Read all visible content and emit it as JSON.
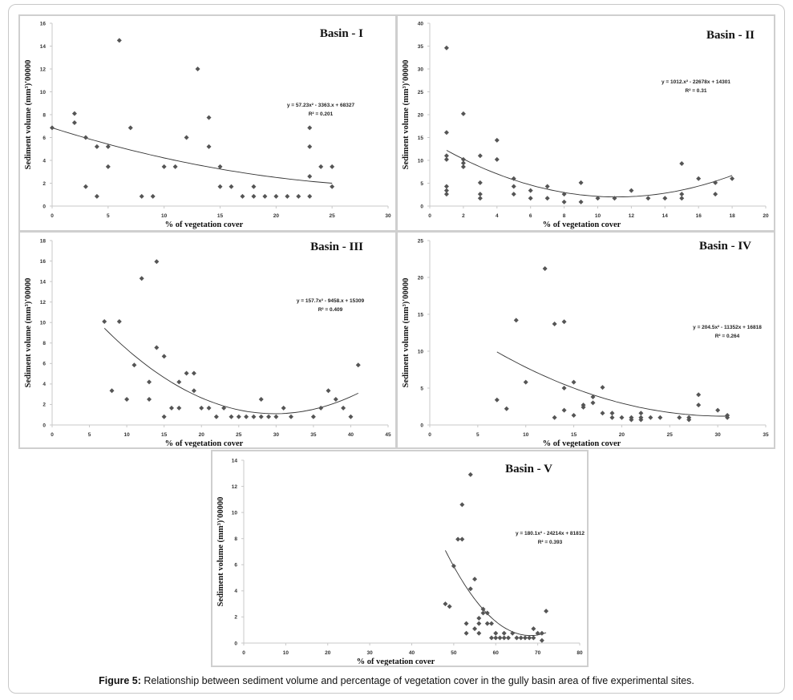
{
  "figure": {
    "caption_label": "Figure 5:",
    "caption_text": " Relationship between sediment volume and percentage of vegetation cover in the gully basin area of five experimental sites."
  },
  "chart_data": [
    {
      "id": "basin-1",
      "type": "scatter",
      "title": "Basin - I",
      "xlabel": "% of vegetation cover",
      "ylabel": "Sediment volume (mm³)'00000",
      "xlim": [
        0,
        30
      ],
      "xticks": [
        0,
        5,
        10,
        15,
        20,
        25,
        30
      ],
      "ylim": [
        0,
        16
      ],
      "yticks": [
        0,
        2,
        4,
        6,
        8,
        10,
        12,
        14,
        16
      ],
      "equation": "y = 57.23x² - 3363.x + 68327",
      "r2": "R² = 0.201",
      "trend": {
        "from": 0,
        "to": 25,
        "y_start": 6.85,
        "y_mid": 3.7,
        "y_end": 2.0
      },
      "points": [
        [
          0,
          6.85
        ],
        [
          2,
          8.1
        ],
        [
          2,
          7.3
        ],
        [
          3,
          6.0
        ],
        [
          3,
          1.7
        ],
        [
          4,
          5.2
        ],
        [
          4,
          0.85
        ],
        [
          5,
          5.2
        ],
        [
          5,
          3.45
        ],
        [
          6,
          14.5
        ],
        [
          7,
          6.85
        ],
        [
          8,
          0.85
        ],
        [
          9,
          0.85
        ],
        [
          10,
          3.45
        ],
        [
          11,
          3.45
        ],
        [
          12,
          6.0
        ],
        [
          13,
          12.0
        ],
        [
          14,
          7.75
        ],
        [
          14,
          5.2
        ],
        [
          15,
          3.45
        ],
        [
          15,
          1.7
        ],
        [
          16,
          1.7
        ],
        [
          17,
          0.85
        ],
        [
          18,
          1.7
        ],
        [
          18,
          0.85
        ],
        [
          19,
          0.85
        ],
        [
          20,
          0.85
        ],
        [
          21,
          0.85
        ],
        [
          22,
          0.85
        ],
        [
          23,
          6.85
        ],
        [
          23,
          5.2
        ],
        [
          23,
          2.6
        ],
        [
          23,
          0.85
        ],
        [
          24,
          3.45
        ],
        [
          25,
          3.45
        ],
        [
          25,
          1.7
        ]
      ]
    },
    {
      "id": "basin-2",
      "type": "scatter",
      "title": "Basin - II",
      "xlabel": "% of vegetation cover",
      "ylabel": "Sediment volume (mm³)'00000",
      "xlim": [
        0,
        20
      ],
      "xticks": [
        0,
        2,
        4,
        6,
        8,
        10,
        12,
        14,
        16,
        18,
        20
      ],
      "ylim": [
        0,
        40
      ],
      "yticks": [
        0,
        5,
        10,
        15,
        20,
        25,
        30,
        35,
        40
      ],
      "equation": "y = 1012.x² - 22678x + 14301",
      "r2": "R² = 0.31",
      "trend": {
        "from": 1,
        "to": 18,
        "y_start": 12.2,
        "y_mid": 2.0,
        "y_end": 6.7
      },
      "points": [
        [
          1,
          34.6
        ],
        [
          1,
          16.1
        ],
        [
          1,
          11.0
        ],
        [
          1,
          10.2
        ],
        [
          1,
          4.3
        ],
        [
          1,
          3.4
        ],
        [
          1,
          2.6
        ],
        [
          2,
          20.2
        ],
        [
          2,
          10.2
        ],
        [
          2,
          9.4
        ],
        [
          2,
          8.6
        ],
        [
          3,
          11.0
        ],
        [
          3,
          5.1
        ],
        [
          3,
          2.6
        ],
        [
          3,
          1.7
        ],
        [
          4,
          14.4
        ],
        [
          4,
          10.2
        ],
        [
          5,
          6.0
        ],
        [
          5,
          4.3
        ],
        [
          5,
          2.6
        ],
        [
          6,
          3.4
        ],
        [
          6,
          1.7
        ],
        [
          7,
          4.3
        ],
        [
          7,
          1.7
        ],
        [
          8,
          2.6
        ],
        [
          8,
          0.9
        ],
        [
          9,
          5.1
        ],
        [
          9,
          0.9
        ],
        [
          10,
          1.7
        ],
        [
          11,
          1.7
        ],
        [
          12,
          3.4
        ],
        [
          13,
          1.7
        ],
        [
          14,
          1.7
        ],
        [
          15,
          9.3
        ],
        [
          15,
          2.6
        ],
        [
          15,
          1.7
        ],
        [
          16,
          6.0
        ],
        [
          17,
          5.1
        ],
        [
          17,
          2.6
        ],
        [
          18,
          6.0
        ]
      ]
    },
    {
      "id": "basin-3",
      "type": "scatter",
      "title": "Basin - III",
      "xlabel": "% of vegetation cover",
      "ylabel": "Sediment volume (mm³)'00000",
      "xlim": [
        0,
        45
      ],
      "xticks": [
        0,
        5,
        10,
        15,
        20,
        25,
        30,
        35,
        40,
        45
      ],
      "ylim": [
        0,
        18
      ],
      "yticks": [
        0,
        2,
        4,
        6,
        8,
        10,
        12,
        14,
        16,
        18
      ],
      "equation": "y = 157.7x² - 9458.x + 15309",
      "r2": "R² = 0.409",
      "trend": {
        "from": 7,
        "to": 41,
        "y_start": 9.45,
        "y_mid": 1.1,
        "y_end": 3.1
      },
      "points": [
        [
          7,
          10.1
        ],
        [
          8,
          3.35
        ],
        [
          9,
          10.1
        ],
        [
          10,
          2.5
        ],
        [
          11,
          5.85
        ],
        [
          12,
          14.3
        ],
        [
          13,
          4.2
        ],
        [
          13,
          2.5
        ],
        [
          14,
          15.95
        ],
        [
          14,
          7.55
        ],
        [
          15,
          6.7
        ],
        [
          15,
          0.8
        ],
        [
          16,
          1.65
        ],
        [
          17,
          4.2
        ],
        [
          17,
          1.65
        ],
        [
          18,
          5.05
        ],
        [
          19,
          5.05
        ],
        [
          19,
          3.35
        ],
        [
          20,
          1.65
        ],
        [
          21,
          1.65
        ],
        [
          22,
          0.8
        ],
        [
          23,
          1.65
        ],
        [
          24,
          0.8
        ],
        [
          25,
          0.8
        ],
        [
          26,
          0.8
        ],
        [
          27,
          0.8
        ],
        [
          28,
          2.5
        ],
        [
          28,
          0.8
        ],
        [
          29,
          0.8
        ],
        [
          30,
          0.8
        ],
        [
          31,
          1.65
        ],
        [
          32,
          0.8
        ],
        [
          35,
          0.8
        ],
        [
          36,
          1.65
        ],
        [
          37,
          3.35
        ],
        [
          38,
          2.5
        ],
        [
          39,
          1.65
        ],
        [
          40,
          0.8
        ],
        [
          41,
          5.85
        ]
      ]
    },
    {
      "id": "basin-4",
      "type": "scatter",
      "title": "Basin - IV",
      "xlabel": "% of vegetation cover",
      "ylabel": "Sediment volume (mm³)'00000",
      "xlim": [
        0,
        35
      ],
      "xticks": [
        0,
        5,
        10,
        15,
        20,
        25,
        30,
        35
      ],
      "ylim": [
        0,
        25
      ],
      "yticks": [
        0,
        5,
        10,
        15,
        20,
        25
      ],
      "equation": "y = 204.5x² - 11352x + 16818",
      "r2": "R² = 0.264",
      "trend": {
        "from": 7,
        "to": 31,
        "y_start": 9.9,
        "y_mid": 1.4,
        "y_end": 1.2
      },
      "points": [
        [
          7,
          3.4
        ],
        [
          8,
          2.2
        ],
        [
          9,
          14.2
        ],
        [
          10,
          5.8
        ],
        [
          12,
          21.2
        ],
        [
          13,
          13.7
        ],
        [
          13,
          1.0
        ],
        [
          14,
          14.0
        ],
        [
          14,
          5.0
        ],
        [
          14,
          2.0
        ],
        [
          15,
          5.8
        ],
        [
          15,
          1.3
        ],
        [
          16,
          2.7
        ],
        [
          16,
          2.4
        ],
        [
          17,
          3.8
        ],
        [
          17,
          3.0
        ],
        [
          18,
          5.1
        ],
        [
          18,
          1.6
        ],
        [
          19,
          1.6
        ],
        [
          19,
          1.0
        ],
        [
          20,
          1.0
        ],
        [
          21,
          1.0
        ],
        [
          21,
          0.7
        ],
        [
          22,
          1.6
        ],
        [
          22,
          1.0
        ],
        [
          22,
          0.7
        ],
        [
          23,
          1.0
        ],
        [
          24,
          1.0
        ],
        [
          26,
          1.0
        ],
        [
          27,
          1.0
        ],
        [
          27,
          0.7
        ],
        [
          28,
          4.1
        ],
        [
          28,
          2.7
        ],
        [
          30,
          2.0
        ],
        [
          31,
          1.3
        ],
        [
          31,
          1.0
        ]
      ]
    },
    {
      "id": "basin-5",
      "type": "scatter",
      "title": "Basin - V",
      "xlabel": "% of vegetation cover",
      "ylabel": "Sediment volume (mm³)'00000",
      "xlim": [
        0,
        80
      ],
      "xticks": [
        0,
        10,
        20,
        30,
        40,
        50,
        60,
        70,
        80
      ],
      "ylim": [
        0,
        14
      ],
      "yticks": [
        0,
        2,
        4,
        6,
        8,
        10,
        12,
        14
      ],
      "equation": "y = 180.1x² - 24214x + 81812",
      "r2": "R² = 0.393",
      "trend": {
        "from": 48,
        "to": 72,
        "y_start": 7.1,
        "y_mid": 0.6,
        "y_end": 0.8
      },
      "points": [
        [
          48,
          3.0
        ],
        [
          49,
          2.8
        ],
        [
          50,
          5.9
        ],
        [
          51,
          7.95
        ],
        [
          52,
          7.95
        ],
        [
          52,
          10.6
        ],
        [
          53,
          1.5
        ],
        [
          53,
          0.75
        ],
        [
          54,
          12.9
        ],
        [
          54,
          4.15
        ],
        [
          55,
          4.9
        ],
        [
          55,
          1.1
        ],
        [
          56,
          1.9
        ],
        [
          56,
          1.5
        ],
        [
          56,
          0.75
        ],
        [
          57,
          2.6
        ],
        [
          57,
          2.3
        ],
        [
          58,
          2.3
        ],
        [
          58,
          1.5
        ],
        [
          59,
          1.5
        ],
        [
          59,
          0.4
        ],
        [
          60,
          0.75
        ],
        [
          60,
          0.4
        ],
        [
          61,
          0.4
        ],
        [
          62,
          0.75
        ],
        [
          62,
          0.4
        ],
        [
          63,
          0.4
        ],
        [
          64,
          0.75
        ],
        [
          65,
          0.4
        ],
        [
          66,
          0.4
        ],
        [
          67,
          0.4
        ],
        [
          68,
          0.4
        ],
        [
          69,
          1.1
        ],
        [
          69,
          0.4
        ],
        [
          70,
          0.75
        ],
        [
          71,
          0.75
        ],
        [
          71,
          0.2
        ],
        [
          72,
          2.45
        ]
      ]
    }
  ]
}
